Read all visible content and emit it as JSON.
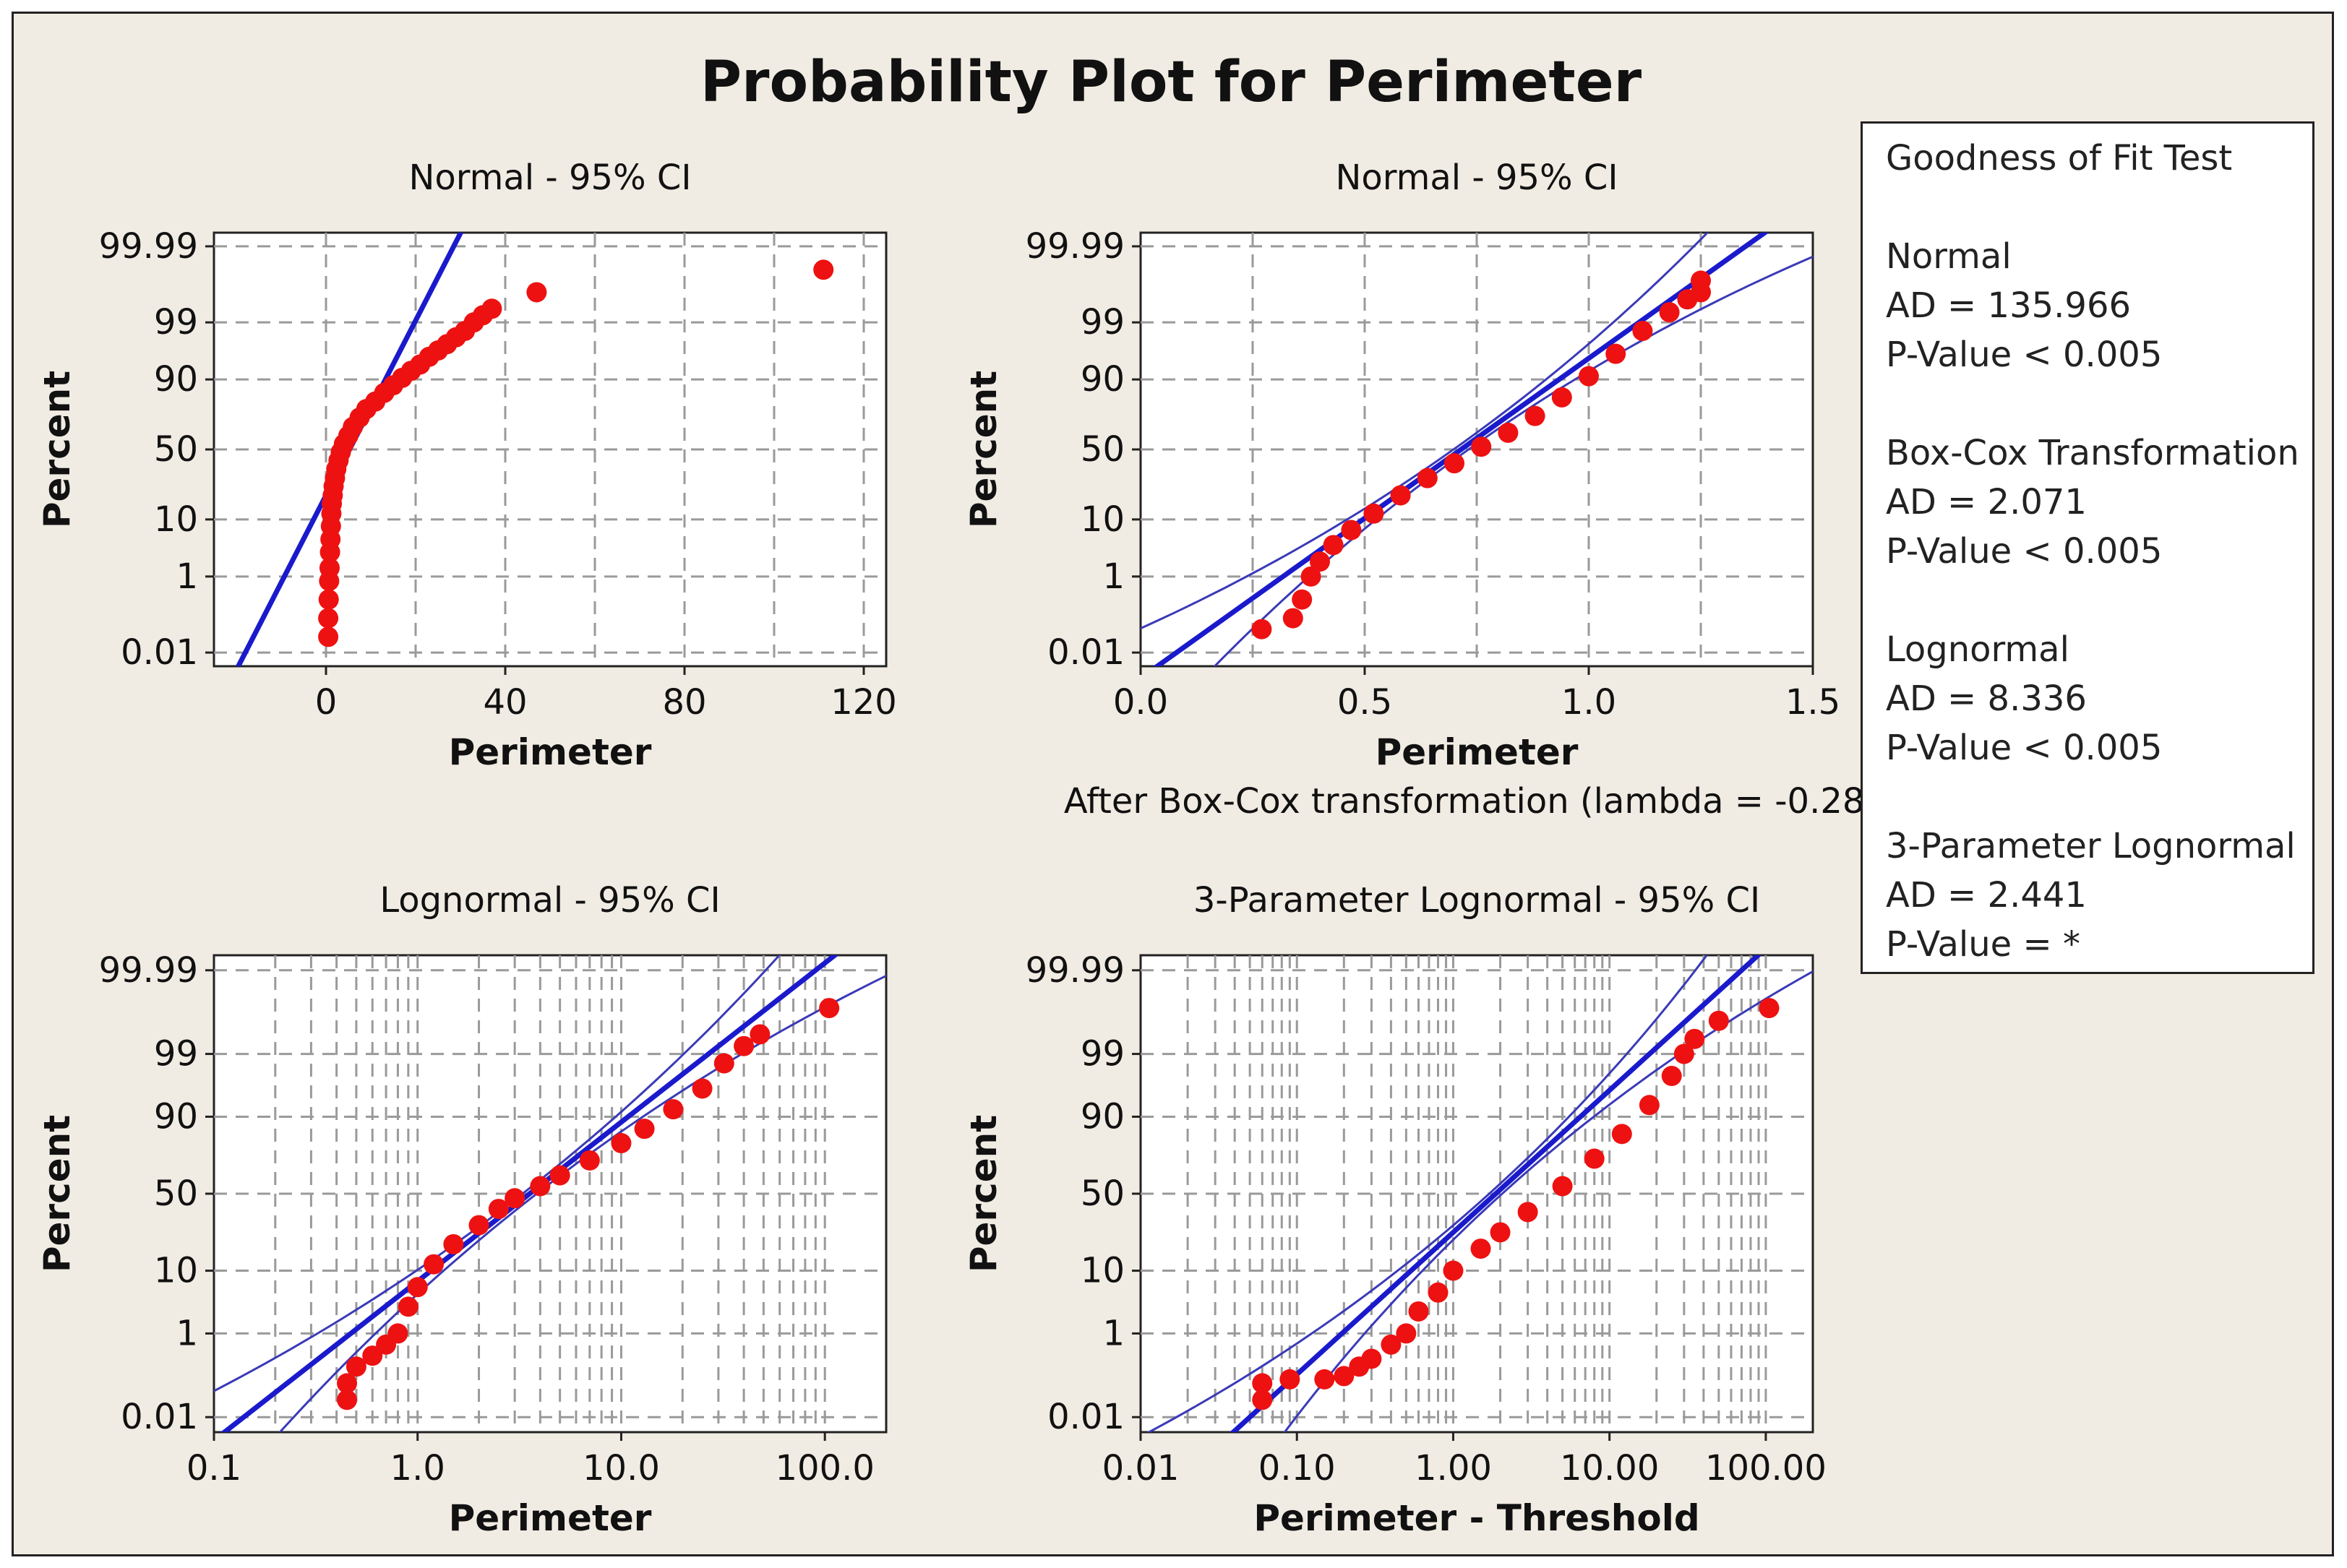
{
  "title": "Probability Plot for Perimeter",
  "footnote": "After Box-Cox transformation (lambda = -0.28)",
  "goodness_of_fit": {
    "heading": "Goodness of Fit Test",
    "tests": [
      {
        "name": "Normal",
        "ad": "AD = 135.966",
        "p": "P-Value < 0.005"
      },
      {
        "name": "Box-Cox Transformation",
        "ad": "AD = 2.071",
        "p": "P-Value < 0.005"
      },
      {
        "name": "Lognormal",
        "ad": "AD = 8.336",
        "p": "P-Value < 0.005"
      },
      {
        "name": "3-Parameter Lognormal",
        "ad": "AD = 2.441",
        "p": "P-Value = *"
      }
    ]
  },
  "colors": {
    "points": "#ee1111",
    "fit_line": "#1a1acc",
    "ci": "#3a3ab8",
    "background": "#f1ece3"
  },
  "chart_data": [
    {
      "type": "scatter",
      "title": "Normal - 95% CI",
      "xlabel": "Perimeter",
      "ylabel": "Percent",
      "xscale": "linear",
      "yscale": "normal-probability",
      "xlim": [
        -25,
        125
      ],
      "xticks": [
        0,
        40,
        80,
        120
      ],
      "xticklabels": [
        "0",
        "40",
        "80",
        "120"
      ],
      "yticks": [
        0.01,
        1,
        10,
        50,
        90,
        99,
        99.99
      ],
      "yticklabels": [
        "0.01",
        "1",
        "10",
        "50",
        "90",
        "99",
        "99.99"
      ],
      "grid": true,
      "fit": {
        "x": [
          -18,
          28.5
        ],
        "percent": [
          0.01,
          99.99
        ]
      },
      "ci": false,
      "series": [
        {
          "x": [
            0.5,
            0.5,
            0.6,
            0.7,
            0.8,
            0.9,
            1.0,
            1.1,
            1.2,
            1.3,
            1.5,
            1.7,
            2.0,
            2.3,
            2.8,
            3.3,
            4.0,
            5.0,
            6.0,
            7.5,
            9.0,
            11.0,
            13.0,
            15.0,
            17.0,
            19.0,
            21.0,
            23.0,
            25.0,
            27.0,
            29.0,
            31.0,
            33.0,
            35.0,
            37.0,
            47.0,
            111.0
          ],
          "percent": [
            0.03,
            0.1,
            0.3,
            0.8,
            1.5,
            3,
            5,
            8,
            12,
            16,
            20,
            25,
            30,
            36,
            42,
            48,
            54,
            60,
            66,
            72,
            77,
            81,
            85,
            88,
            90.5,
            92.5,
            94,
            95.5,
            96.5,
            97.3,
            98,
            98.5,
            99,
            99.3,
            99.5,
            99.8,
            99.95
          ]
        }
      ]
    },
    {
      "type": "scatter",
      "title": "Normal - 95% CI",
      "xlabel": "Perimeter",
      "ylabel": "Percent",
      "xscale": "linear",
      "yscale": "normal-probability",
      "xlim": [
        0,
        1.5
      ],
      "xticks": [
        0,
        0.5,
        1,
        1.5
      ],
      "xticklabels": [
        "0.0",
        "0.5",
        "1.0",
        "1.5"
      ],
      "yticks": [
        0.01,
        1,
        10,
        50,
        90,
        99,
        99.99
      ],
      "yticklabels": [
        "0.01",
        "1",
        "10",
        "50",
        "90",
        "99",
        "99.99"
      ],
      "grid": true,
      "fit": {
        "x": [
          0.08,
          1.35
        ],
        "percent": [
          0.01,
          99.99
        ]
      },
      "ci": true,
      "series": [
        {
          "x": [
            0.27,
            0.34,
            0.36,
            0.38,
            0.4,
            0.43,
            0.47,
            0.52,
            0.58,
            0.64,
            0.7,
            0.76,
            0.82,
            0.88,
            0.94,
            1.0,
            1.06,
            1.12,
            1.18,
            1.22,
            1.25,
            1.25
          ],
          "percent": [
            0.05,
            0.1,
            0.3,
            1,
            2,
            4,
            7,
            12,
            20,
            30,
            40,
            52,
            62,
            73,
            83,
            91,
            96,
            98.5,
            99.4,
            99.7,
            99.8,
            99.9
          ]
        }
      ]
    },
    {
      "type": "scatter",
      "title": "Lognormal - 95% CI",
      "xlabel": "Perimeter",
      "ylabel": "Percent",
      "xscale": "log",
      "yscale": "normal-probability",
      "xlim": [
        0.1,
        200
      ],
      "xticks": [
        0.1,
        1,
        10,
        100
      ],
      "xticklabels": [
        "0.1",
        "1.0",
        "10.0",
        "100.0"
      ],
      "yticks": [
        0.01,
        1,
        10,
        50,
        90,
        99,
        99.99
      ],
      "yticklabels": [
        "0.01",
        "1",
        "10",
        "50",
        "90",
        "99",
        "99.99"
      ],
      "grid": true,
      "fit": {
        "x": [
          0.14,
          90
        ],
        "percent": [
          0.01,
          99.99
        ]
      },
      "ci": true,
      "series": [
        {
          "x": [
            0.45,
            0.45,
            0.5,
            0.6,
            0.7,
            0.8,
            0.9,
            1.0,
            1.2,
            1.5,
            2.0,
            2.5,
            3.0,
            4.0,
            5.0,
            7.0,
            10.0,
            13.0,
            18.0,
            25.0,
            32.0,
            40.0,
            48.0,
            105.0
          ],
          "percent": [
            0.03,
            0.08,
            0.2,
            0.35,
            0.6,
            1,
            3,
            6,
            12,
            20,
            30,
            40,
            47,
            55,
            62,
            71,
            80,
            86,
            92,
            96,
            98.5,
            99.3,
            99.6,
            99.9
          ]
        }
      ]
    },
    {
      "type": "scatter",
      "title": "3-Parameter Lognormal - 95% CI",
      "xlabel": "Perimeter - Threshold",
      "ylabel": "Percent",
      "xscale": "log",
      "yscale": "normal-probability",
      "xlim": [
        0.01,
        200
      ],
      "xticks": [
        0.01,
        0.1,
        1,
        10,
        100
      ],
      "xticklabels": [
        "0.01",
        "0.10",
        "1.00",
        "10.00",
        "100.00"
      ],
      "yticks": [
        0.01,
        1,
        10,
        50,
        90,
        99,
        99.99
      ],
      "yticklabels": [
        "0.01",
        "1",
        "10",
        "50",
        "90",
        "99",
        "99.99"
      ],
      "grid": true,
      "fit": {
        "x": [
          0.05,
          70
        ],
        "percent": [
          0.01,
          99.99
        ]
      },
      "ci": true,
      "series": [
        {
          "x": [
            0.06,
            0.06,
            0.09,
            0.15,
            0.2,
            0.25,
            0.3,
            0.4,
            0.5,
            0.6,
            0.8,
            1.0,
            1.5,
            2.0,
            3.0,
            5.0,
            8.0,
            12.0,
            18.0,
            25.0,
            30.0,
            35.0,
            50.0,
            105.0
          ],
          "percent": [
            0.03,
            0.08,
            0.1,
            0.1,
            0.12,
            0.2,
            0.3,
            0.6,
            1,
            2.5,
            5,
            10,
            18,
            26,
            38,
            55,
            72,
            84,
            93,
            97.5,
            99,
            99.5,
            99.8,
            99.9
          ]
        }
      ]
    }
  ]
}
